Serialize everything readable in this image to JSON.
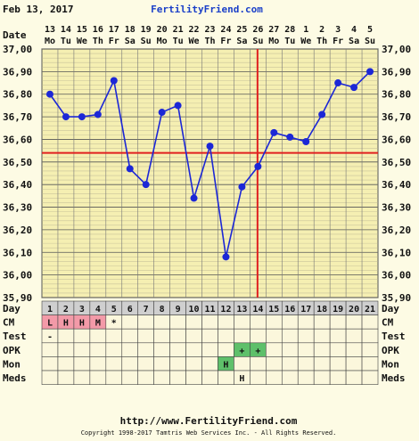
{
  "header": {
    "date": "Feb 13, 2017",
    "brand": "FertilityFriend.com"
  },
  "footer": {
    "url": "http://www.FertilityFriend.com",
    "copyright": "Copyright 1998-2017 Tamtris Web Services Inc. - All Rights Reserved."
  },
  "row_labels": {
    "date": "Date",
    "day": "Day",
    "cm": "CM",
    "test": "Test",
    "opk": "OPK",
    "mon": "Mon",
    "meds": "Meds"
  },
  "colors": {
    "background": "#fdfbe4",
    "grid_fill": "#f5efb2",
    "line": "#1c27d6",
    "coverline": "#e02020",
    "cm_fill": "#f39aa8",
    "opk_fill": "#5ec06a",
    "day_fill": "#cfcfcf"
  },
  "chart_data": {
    "type": "line",
    "dates": [
      "13",
      "14",
      "15",
      "16",
      "17",
      "18",
      "19",
      "20",
      "21",
      "22",
      "23",
      "24",
      "25",
      "26",
      "27",
      "28",
      "1",
      "2",
      "3",
      "4",
      "5"
    ],
    "weekdays": [
      "Mo",
      "Tu",
      "We",
      "Th",
      "Fr",
      "Sa",
      "Su",
      "Mo",
      "Tu",
      "We",
      "Th",
      "Fr",
      "Sa",
      "Su",
      "Mo",
      "Tu",
      "We",
      "Th",
      "Fr",
      "Sa",
      "Su"
    ],
    "cycle_days": [
      "1",
      "2",
      "3",
      "4",
      "5",
      "6",
      "7",
      "8",
      "9",
      "10",
      "11",
      "12",
      "13",
      "14",
      "15",
      "16",
      "17",
      "18",
      "19",
      "20",
      "21"
    ],
    "temperatures": [
      36.8,
      36.7,
      36.7,
      36.71,
      36.86,
      36.47,
      36.4,
      36.72,
      36.75,
      36.34,
      36.57,
      36.08,
      36.39,
      36.48,
      36.63,
      36.61,
      36.59,
      36.71,
      36.85,
      36.83,
      36.9
    ],
    "y_ticks": [
      "37,00",
      "36,90",
      "36,80",
      "36,70",
      "36,60",
      "36,50",
      "36,40",
      "36,30",
      "36,20",
      "36,10",
      "36,00",
      "35,90"
    ],
    "ylim": [
      35.9,
      37.0
    ],
    "coverline": 36.54,
    "ovulation_day_index": 13,
    "cm": [
      "L",
      "H",
      "H",
      "M",
      "*",
      "",
      "",
      "",
      "",
      "",
      "",
      "",
      "",
      "",
      "",
      "",
      "",
      "",
      "",
      "",
      ""
    ],
    "test": [
      "-",
      "",
      "",
      "",
      "",
      "",
      "",
      "",
      "",
      "",
      "",
      "",
      "",
      "",
      "",
      "",
      "",
      "",
      "",
      "",
      ""
    ],
    "opk": [
      "",
      "",
      "",
      "",
      "",
      "",
      "",
      "",
      "",
      "",
      "",
      "",
      "+",
      "+",
      "",
      "",
      "",
      "",
      "",
      "",
      ""
    ],
    "mon": [
      "",
      "",
      "",
      "",
      "",
      "",
      "",
      "",
      "",
      "",
      "",
      "H",
      "",
      "",
      "",
      "",
      "",
      "",
      "",
      "",
      ""
    ],
    "meds": [
      "",
      "",
      "",
      "",
      "",
      "",
      "",
      "",
      "",
      "",
      "",
      "",
      "H",
      "",
      "",
      "",
      "",
      "",
      "",
      "",
      ""
    ]
  }
}
